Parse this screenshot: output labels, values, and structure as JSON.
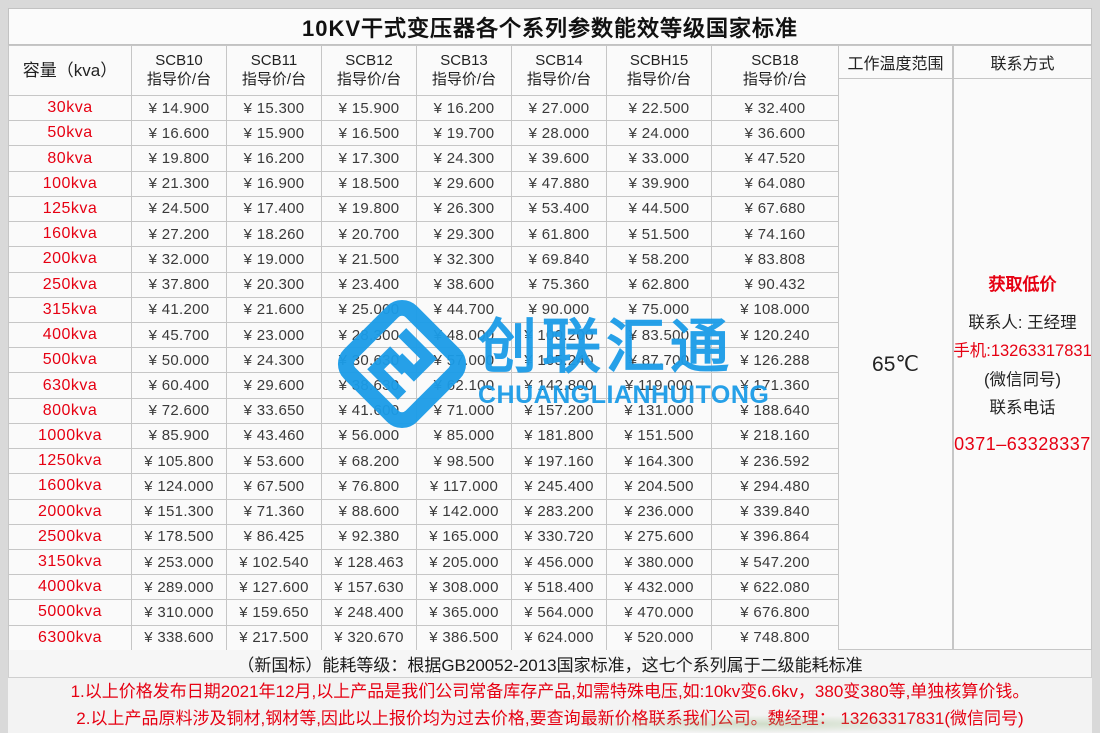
{
  "title": "10KV干式变压器各个系列参数能效等级国家标准",
  "table": {
    "capacity_header": "容量（kva）",
    "price_unit_label": "指导价/台",
    "series": [
      "SCB10",
      "SCB11",
      "SCB12",
      "SCB13",
      "SCB14",
      "SCBH15",
      "SCB18"
    ],
    "rows": [
      {
        "capacity": "30kva",
        "prices": [
          "¥ 14.900",
          "¥ 15.300",
          "¥ 15.900",
          "¥ 16.200",
          "¥ 27.000",
          "¥ 22.500",
          "¥ 32.400"
        ]
      },
      {
        "capacity": "50kva",
        "prices": [
          "¥ 16.600",
          "¥ 15.900",
          "¥ 16.500",
          "¥ 19.700",
          "¥ 28.000",
          "¥ 24.000",
          "¥ 36.600"
        ]
      },
      {
        "capacity": "80kva",
        "prices": [
          "¥ 19.800",
          "¥ 16.200",
          "¥ 17.300",
          "¥ 24.300",
          "¥ 39.600",
          "¥ 33.000",
          "¥ 47.520"
        ]
      },
      {
        "capacity": "100kva",
        "prices": [
          "¥ 21.300",
          "¥ 16.900",
          "¥ 18.500",
          "¥ 29.600",
          "¥ 47.880",
          "¥ 39.900",
          "¥ 64.080"
        ]
      },
      {
        "capacity": "125kva",
        "prices": [
          "¥ 24.500",
          "¥ 17.400",
          "¥ 19.800",
          "¥ 26.300",
          "¥ 53.400",
          "¥ 44.500",
          "¥ 67.680"
        ]
      },
      {
        "capacity": "160kva",
        "prices": [
          "¥ 27.200",
          "¥ 18.260",
          "¥ 20.700",
          "¥ 29.300",
          "¥ 61.800",
          "¥ 51.500",
          "¥ 74.160"
        ]
      },
      {
        "capacity": "200kva",
        "prices": [
          "¥ 32.000",
          "¥ 19.000",
          "¥ 21.500",
          "¥ 32.300",
          "¥ 69.840",
          "¥ 58.200",
          "¥ 83.808"
        ]
      },
      {
        "capacity": "250kva",
        "prices": [
          "¥ 37.800",
          "¥ 20.300",
          "¥ 23.400",
          "¥ 38.600",
          "¥ 75.360",
          "¥ 62.800",
          "¥ 90.432"
        ]
      },
      {
        "capacity": "315kva",
        "prices": [
          "¥ 41.200",
          "¥ 21.600",
          "¥ 25.000",
          "¥ 44.700",
          "¥ 90.000",
          "¥ 75.000",
          "¥ 108.000"
        ]
      },
      {
        "capacity": "400kva",
        "prices": [
          "¥ 45.700",
          "¥ 23.000",
          "¥ 28.300",
          "¥ 48.000",
          "¥ 100.200",
          "¥ 83.500",
          "¥ 120.240"
        ]
      },
      {
        "capacity": "500kva",
        "prices": [
          "¥ 50.000",
          "¥ 24.300",
          "¥ 30.630",
          "¥ 57.000",
          "¥ 105.240",
          "¥ 87.700",
          "¥ 126.288"
        ]
      },
      {
        "capacity": "630kva",
        "prices": [
          "¥ 60.400",
          "¥ 29.600",
          "¥ 38.630",
          "¥ 62.100",
          "¥ 142.800",
          "¥ 119.000",
          "¥ 171.360"
        ]
      },
      {
        "capacity": "800kva",
        "prices": [
          "¥ 72.600",
          "¥ 33.650",
          "¥ 41.600",
          "¥ 71.000",
          "¥ 157.200",
          "¥ 131.000",
          "¥ 188.640"
        ]
      },
      {
        "capacity": "1000kva",
        "prices": [
          "¥ 85.900",
          "¥ 43.460",
          "¥ 56.000",
          "¥ 85.000",
          "¥ 181.800",
          "¥ 151.500",
          "¥ 218.160"
        ]
      },
      {
        "capacity": "1250kva",
        "prices": [
          "¥ 105.800",
          "¥ 53.600",
          "¥ 68.200",
          "¥ 98.500",
          "¥ 197.160",
          "¥ 164.300",
          "¥ 236.592"
        ]
      },
      {
        "capacity": "1600kva",
        "prices": [
          "¥ 124.000",
          "¥ 67.500",
          "¥ 76.800",
          "¥ 117.000",
          "¥ 245.400",
          "¥ 204.500",
          "¥ 294.480"
        ]
      },
      {
        "capacity": "2000kva",
        "prices": [
          "¥ 151.300",
          "¥ 71.360",
          "¥ 88.600",
          "¥ 142.000",
          "¥ 283.200",
          "¥ 236.000",
          "¥ 339.840"
        ]
      },
      {
        "capacity": "2500kva",
        "prices": [
          "¥ 178.500",
          "¥ 86.425",
          "¥ 92.380",
          "¥ 165.000",
          "¥ 330.720",
          "¥ 275.600",
          "¥ 396.864"
        ]
      },
      {
        "capacity": "3150kva",
        "prices": [
          "¥ 253.000",
          "¥ 102.540",
          "¥ 128.463",
          "¥ 205.000",
          "¥ 456.000",
          "¥ 380.000",
          "¥ 547.200"
        ]
      },
      {
        "capacity": "4000kva",
        "prices": [
          "¥ 289.000",
          "¥ 127.600",
          "¥ 157.630",
          "¥ 308.000",
          "¥ 518.400",
          "¥ 432.000",
          "¥ 622.080"
        ]
      },
      {
        "capacity": "5000kva",
        "prices": [
          "¥ 310.000",
          "¥ 159.650",
          "¥ 248.400",
          "¥ 365.000",
          "¥ 564.000",
          "¥ 470.000",
          "¥ 676.800"
        ]
      },
      {
        "capacity": "6300kva",
        "prices": [
          "¥ 338.600",
          "¥ 217.500",
          "¥ 320.670",
          "¥ 386.500",
          "¥ 624.000",
          "¥ 520.000",
          "¥ 748.800"
        ]
      }
    ]
  },
  "side": {
    "temp_header": "工作温度范围",
    "temp_value": "65℃",
    "contact_header": "联系方式",
    "contact": {
      "promo": "获取低价",
      "person": "联系人: 王经理",
      "mobile": "手机:13263317831",
      "wechat_note": "(微信同号)",
      "phone_label": "联系电话",
      "phone": "0371–63328337"
    }
  },
  "notes": {
    "standard": "（新国标）能耗等级：根据GB20052-2013国家标准，这七个系列属于二级能耗标准",
    "red_line1": "1.以上价格发布日期2021年12月,以上产品是我们公司常备库存产品,如需特殊电压,如:10kv变6.6kv，380变380等,单独核算价钱。",
    "red_line2": "2.以上产品原料涉及铜材,钢材等,因此以上报价均为过去价格,要查询最新价格联系我们公司。魏经理： 13263317831(微信同号)"
  },
  "watermark": {
    "name": "创联汇通",
    "latin": "CHUANGLIANHUITONG",
    "color": "#1b9ce8"
  },
  "colors": {
    "accent_red": "#e60012",
    "logo_blue": "#1b9ce8",
    "page_bg": "#d9d9d9",
    "cell_bg": "#fafafa"
  }
}
